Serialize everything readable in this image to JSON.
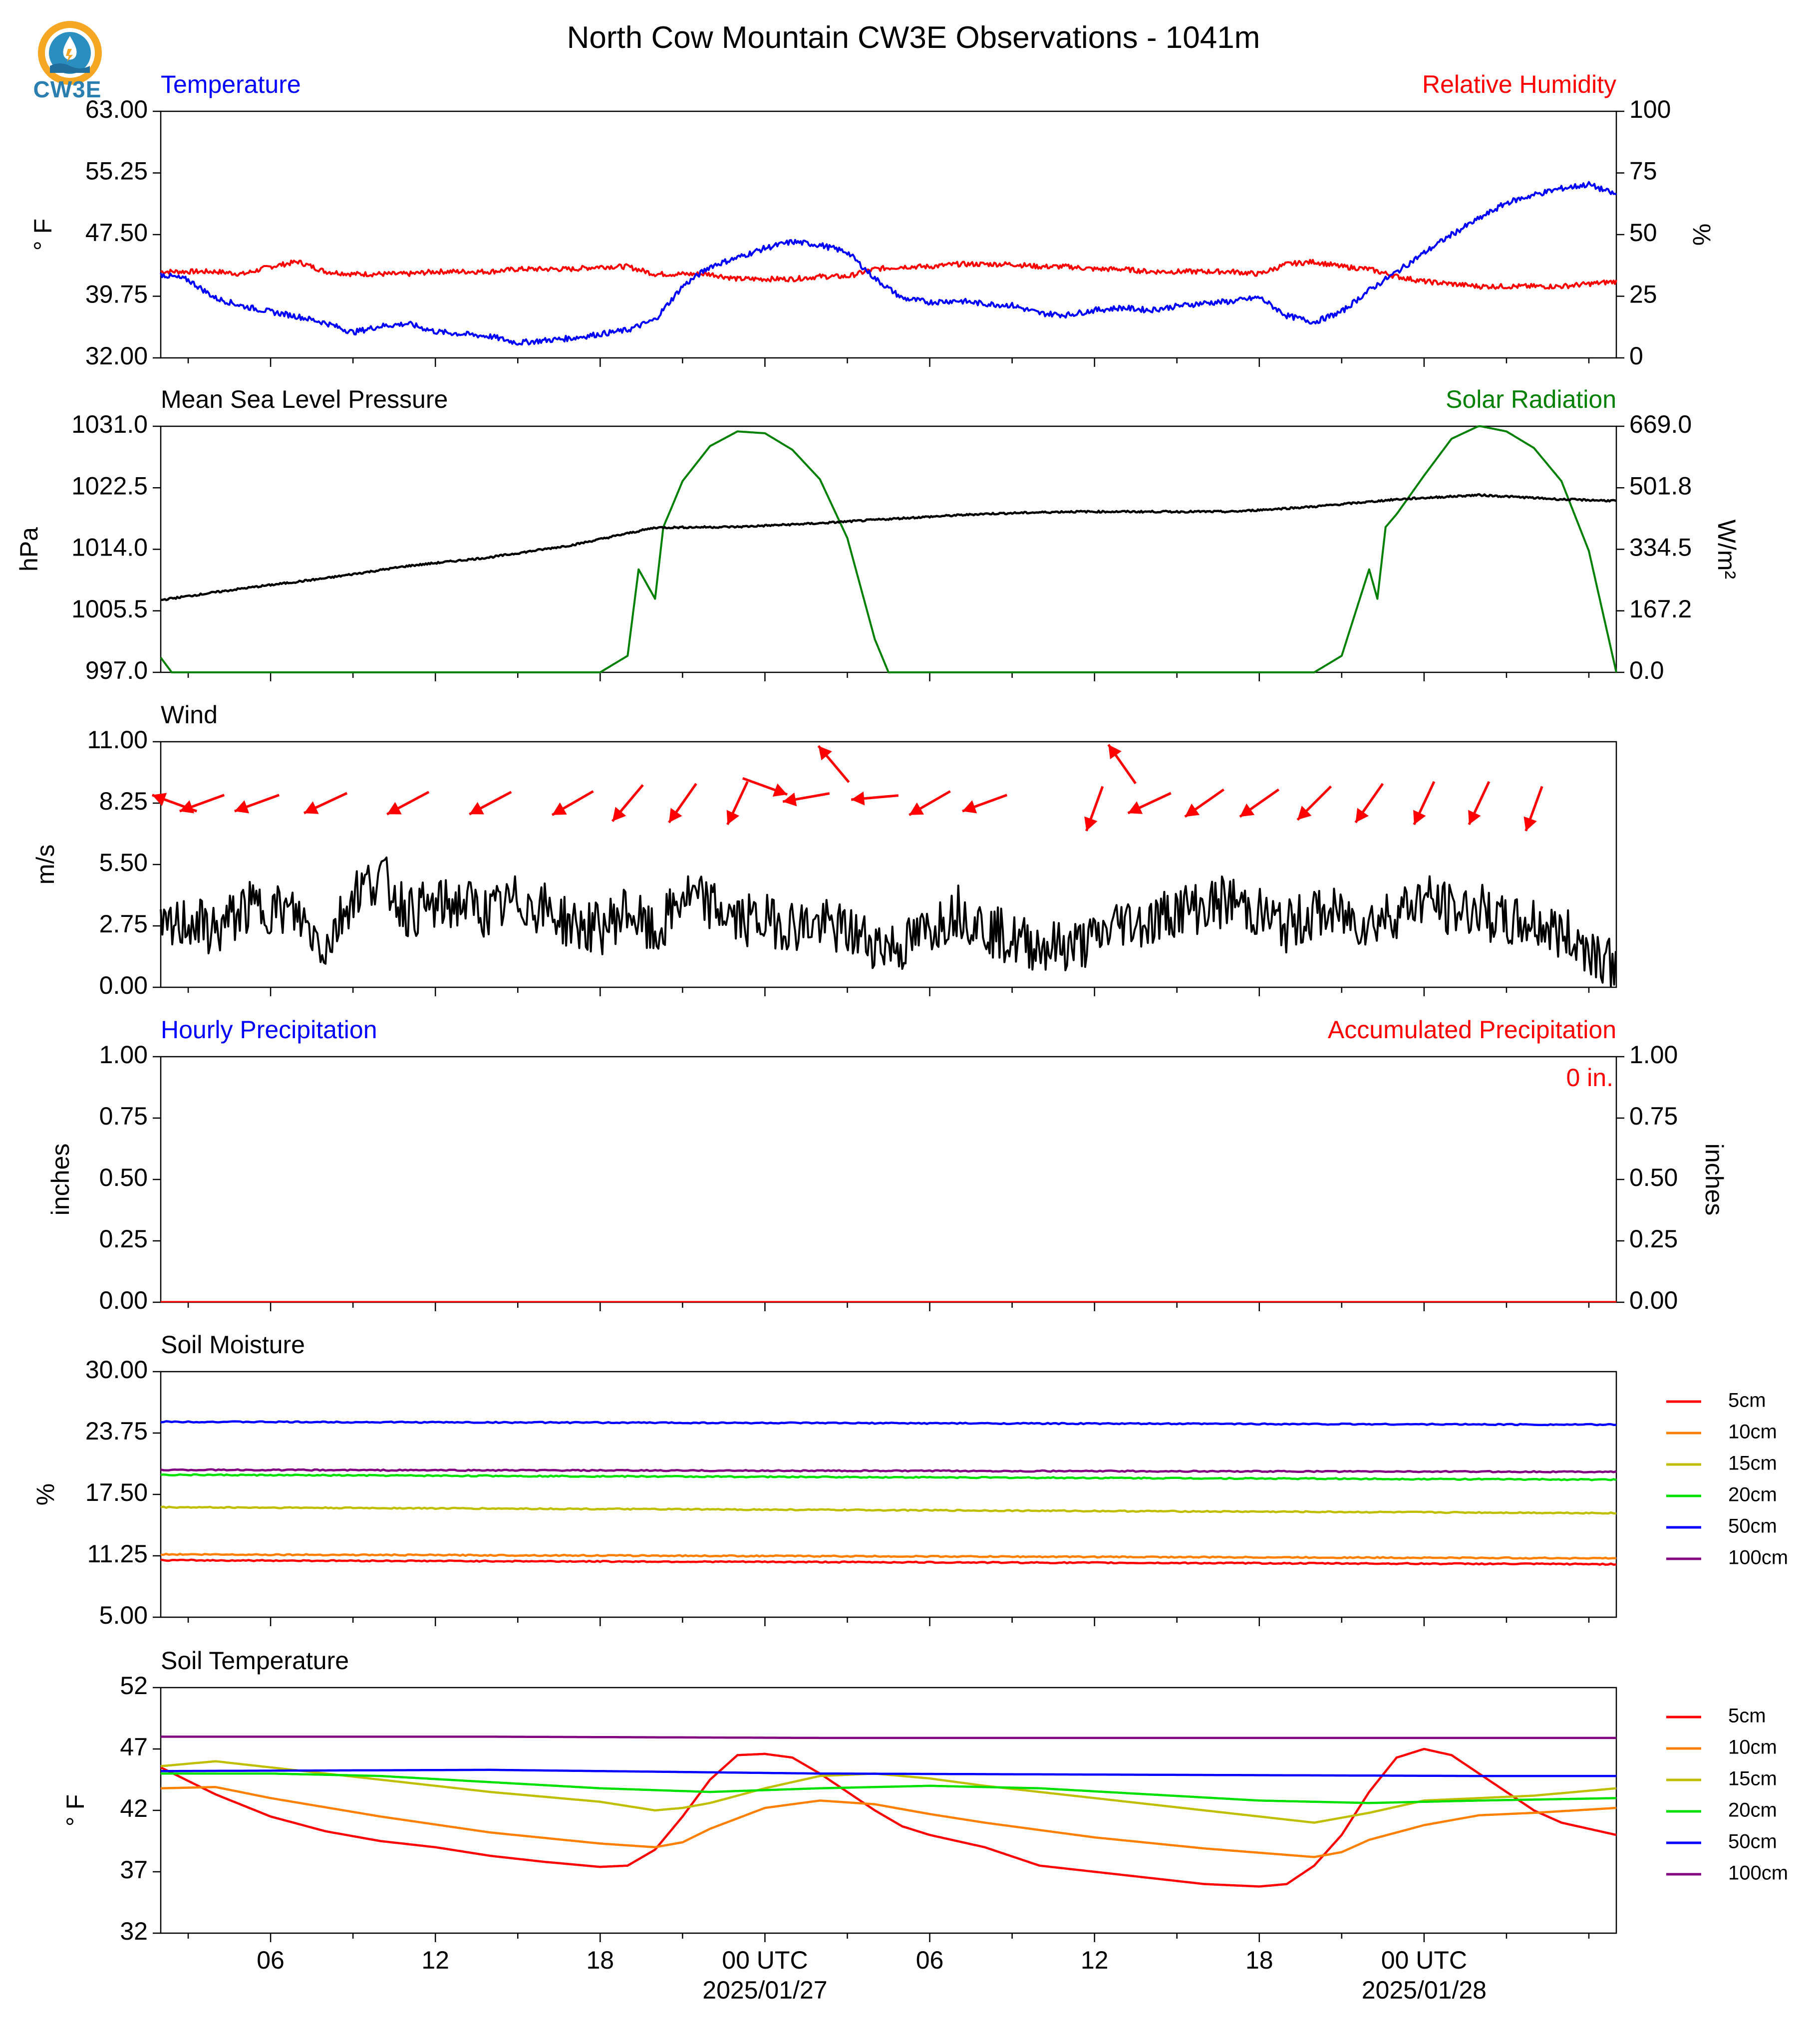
{
  "title": "North Cow Mountain CW3E Observations - 1041m",
  "logo_text": "CW3E",
  "colors": {
    "temperature": "#0000ff",
    "humidity": "#ff0000",
    "pressure": "#000000",
    "solar": "#008000",
    "wind": "#000000",
    "wind_arrows": "#ff0000",
    "precip_hourly": "#0000ff",
    "precip_accum": "#ff0000"
  },
  "x_axis": {
    "tick_labels": [
      "06",
      "12",
      "18",
      "00 UTC",
      "06",
      "12",
      "18",
      "00 UTC"
    ],
    "date_labels": [
      "2025/01/27",
      "2025/01/28"
    ]
  },
  "legend_depths": [
    "5cm",
    "10cm",
    "15cm",
    "20cm",
    "50cm",
    "100cm"
  ],
  "depth_colors": [
    "#ff0000",
    "#ff8000",
    "#bfbf00",
    "#00e000",
    "#0000ff",
    "#800080"
  ],
  "chart_data": [
    {
      "type": "line",
      "panel": "temperature_humidity",
      "left_title": "Temperature",
      "right_title": "Relative Humidity",
      "ylabel": "° F",
      "ylabel_right": "%",
      "ylim": [
        32,
        63
      ],
      "ylim_right": [
        0,
        100
      ],
      "yticks": [
        "63.00",
        "55.25",
        "47.50",
        "39.75",
        "32.00"
      ],
      "yticks_right": [
        "100",
        "75",
        "50",
        "25",
        "0"
      ],
      "x_hours": [
        0,
        1,
        2,
        3,
        4,
        5,
        6,
        7,
        8,
        9,
        10,
        11,
        12,
        13,
        14,
        15,
        16,
        17,
        18,
        19,
        20,
        21,
        22,
        23,
        24,
        25,
        26,
        27,
        28,
        29,
        30,
        31,
        32,
        33,
        34,
        35,
        36,
        37,
        38,
        39,
        40,
        41,
        42,
        43,
        44,
        45,
        46,
        47,
        48,
        49,
        50,
        51,
        52,
        53
      ],
      "series": [
        {
          "name": "Temperature",
          "axis": "left",
          "values": [
            42.5,
            41.8,
            39.5,
            38.5,
            37.8,
            37.2,
            36.4,
            35.2,
            36.0,
            36.3,
            35.3,
            35.0,
            34.7,
            33.9,
            34.2,
            34.5,
            35.0,
            35.5,
            36.8,
            41.0,
            43.5,
            44.6,
            45.8,
            46.6,
            46.2,
            45.3,
            42.0,
            39.5,
            39.0,
            39.2,
            38.8,
            38.6,
            37.6,
            37.4,
            38.0,
            38.3,
            38.0,
            38.5,
            38.9,
            39.1,
            39.6,
            37.3,
            36.5,
            37.8,
            40.5,
            42.8,
            45.2,
            47.5,
            49.5,
            51.5,
            52.5,
            53.3,
            53.8,
            52.5
          ]
        },
        {
          "name": "Relative Humidity",
          "axis": "right",
          "values": [
            35,
            35,
            35,
            34,
            37,
            39,
            35,
            34,
            34,
            34,
            35,
            35,
            35,
            36,
            36,
            36,
            37,
            37,
            34,
            34,
            34,
            32,
            32,
            32,
            33,
            33,
            36,
            37,
            37,
            38,
            38,
            38,
            37,
            37,
            36,
            36,
            35,
            35,
            35,
            35,
            34,
            38,
            39,
            37,
            36,
            33,
            31,
            30,
            29,
            29,
            29,
            29,
            30,
            31
          ]
        }
      ]
    },
    {
      "type": "line",
      "panel": "pressure_solar",
      "left_title": "Mean Sea Level Pressure",
      "right_title": "Solar Radiation",
      "ylabel": "hPa",
      "ylabel_right": "W/m²",
      "ylim": [
        997.0,
        1031.0
      ],
      "ylim_right": [
        0.0,
        669.0
      ],
      "yticks": [
        "1031.0",
        "1022.5",
        "1014.0",
        "1005.5",
        "997.0"
      ],
      "yticks_right": [
        "669.0",
        "501.8",
        "334.5",
        "167.2",
        "0.0"
      ],
      "series": [
        {
          "name": "Mean Sea Level Pressure",
          "axis": "left",
          "x_hours": [
            0,
            3,
            6,
            9,
            12,
            15,
            18,
            21,
            24,
            27,
            30,
            33,
            36,
            39,
            42,
            45,
            48,
            51,
            53
          ],
          "values": [
            1007.0,
            1008.6,
            1010.0,
            1011.7,
            1012.9,
            1014.6,
            1017.0,
            1017.1,
            1017.6,
            1018.3,
            1018.9,
            1019.2,
            1019.2,
            1019.2,
            1019.9,
            1020.9,
            1021.5,
            1020.9,
            1020.7
          ]
        },
        {
          "name": "Solar Radiation",
          "axis": "right",
          "x_hours": [
            0,
            0.4,
            16,
            17,
            17.4,
            18.0,
            18.3,
            18.5,
            19,
            20,
            21,
            22,
            23,
            24,
            25,
            26,
            26.5,
            27,
            42,
            43,
            44,
            44.3,
            44.6,
            45,
            46,
            47,
            48,
            49,
            50,
            51,
            52,
            53
          ],
          "values": [
            40,
            0,
            0,
            45,
            280,
            200,
            395,
            430,
            520,
            615,
            655,
            650,
            605,
            525,
            365,
            90,
            0,
            0,
            0,
            45,
            280,
            200,
            395,
            430,
            535,
            635,
            670,
            655,
            610,
            520,
            330,
            0
          ]
        }
      ]
    },
    {
      "type": "line",
      "panel": "wind",
      "left_title": "Wind",
      "ylabel": "m/s",
      "ylim": [
        0.0,
        11.0
      ],
      "yticks": [
        "11.00",
        "8.25",
        "5.50",
        "2.75",
        "0.00"
      ],
      "series": [
        {
          "name": "Wind",
          "axis": "left",
          "values": [
            2.3,
            3.0,
            2.5,
            3.5,
            3.6,
            3.2,
            1.8,
            4.2,
            5.0,
            3.4,
            3.6,
            3.8,
            3.3,
            3.9,
            3.5,
            2.8,
            2.6,
            3.5,
            2.2,
            4.1,
            3.7,
            3.0,
            3.0,
            2.8,
            2.8,
            2.5,
            2.0,
            1.8,
            2.6,
            3.5,
            2.7,
            2.1,
            1.9,
            1.8,
            2.1,
            3.0,
            2.9,
            3.5,
            3.6,
            3.9,
            3.3,
            2.7,
            3.3,
            3.2,
            2.9,
            3.4,
            4.0,
            3.4,
            3.5,
            2.8,
            2.9,
            2.4,
            1.8,
            1.0
          ]
        }
      ],
      "wind_barbs": [
        {
          "hour": 0.5,
          "speed": 8.25,
          "dir_deg": 110
        },
        {
          "hour": 1.5,
          "speed": 8.25,
          "dir_deg": 70
        },
        {
          "hour": 3.5,
          "speed": 8.25,
          "dir_deg": 70
        },
        {
          "hour": 6,
          "speed": 8.25,
          "dir_deg": 65
        },
        {
          "hour": 9,
          "speed": 8.25,
          "dir_deg": 62
        },
        {
          "hour": 12,
          "speed": 8.25,
          "dir_deg": 62
        },
        {
          "hour": 15,
          "speed": 8.25,
          "dir_deg": 60
        },
        {
          "hour": 17,
          "speed": 8.25,
          "dir_deg": 40
        },
        {
          "hour": 19,
          "speed": 8.25,
          "dir_deg": 35
        },
        {
          "hour": 21,
          "speed": 8.25,
          "dir_deg": 25
        },
        {
          "hour": 22,
          "speed": 9.0,
          "dir_deg": 290
        },
        {
          "hour": 23.5,
          "speed": 8.5,
          "dir_deg": 80
        },
        {
          "hour": 24.5,
          "speed": 10.0,
          "dir_deg": 140
        },
        {
          "hour": 26,
          "speed": 8.5,
          "dir_deg": 85
        },
        {
          "hour": 28,
          "speed": 8.25,
          "dir_deg": 60
        },
        {
          "hour": 30,
          "speed": 8.25,
          "dir_deg": 70
        },
        {
          "hour": 34,
          "speed": 8.0,
          "dir_deg": 20
        },
        {
          "hour": 35,
          "speed": 10.0,
          "dir_deg": 145
        },
        {
          "hour": 36,
          "speed": 8.25,
          "dir_deg": 65
        },
        {
          "hour": 38,
          "speed": 8.25,
          "dir_deg": 55
        },
        {
          "hour": 40,
          "speed": 8.25,
          "dir_deg": 55
        },
        {
          "hour": 42,
          "speed": 8.25,
          "dir_deg": 45
        },
        {
          "hour": 44,
          "speed": 8.25,
          "dir_deg": 35
        },
        {
          "hour": 46,
          "speed": 8.25,
          "dir_deg": 25
        },
        {
          "hour": 48,
          "speed": 8.25,
          "dir_deg": 25
        },
        {
          "hour": 50,
          "speed": 8.0,
          "dir_deg": 20
        }
      ]
    },
    {
      "type": "bar",
      "panel": "precipitation",
      "left_title": "Hourly Precipitation",
      "right_title": "Accumulated Precipitation",
      "ylabel": "inches",
      "ylabel_right": "inches",
      "ylim": [
        0.0,
        1.0
      ],
      "ylim_right": [
        0.0,
        1.0
      ],
      "yticks": [
        "1.00",
        "0.75",
        "0.50",
        "0.25",
        "0.00"
      ],
      "yticks_right": [
        "1.00",
        "0.75",
        "0.50",
        "0.25",
        "0.00"
      ],
      "annotation": "0 in.",
      "series": [
        {
          "name": "Hourly Precipitation",
          "axis": "left",
          "value": 0.0
        },
        {
          "name": "Accumulated Precipitation",
          "axis": "right",
          "value": 0.0
        }
      ]
    },
    {
      "type": "line",
      "panel": "soil_moisture",
      "left_title": "Soil Moisture",
      "ylabel": "%",
      "ylim": [
        5.0,
        30.0
      ],
      "yticks": [
        "30.00",
        "23.75",
        "17.50",
        "11.25",
        "5.00"
      ],
      "series": [
        {
          "name": "5cm",
          "x_hours": [
            0,
            53
          ],
          "values": [
            10.8,
            10.4
          ]
        },
        {
          "name": "10cm",
          "x_hours": [
            0,
            53
          ],
          "values": [
            11.4,
            11.0
          ]
        },
        {
          "name": "15cm",
          "x_hours": [
            0,
            53
          ],
          "values": [
            16.2,
            15.6
          ]
        },
        {
          "name": "20cm",
          "x_hours": [
            0,
            53
          ],
          "values": [
            19.5,
            19.0
          ]
        },
        {
          "name": "50cm",
          "x_hours": [
            0,
            53
          ],
          "values": [
            24.9,
            24.6
          ]
        },
        {
          "name": "100cm",
          "x_hours": [
            0,
            53
          ],
          "values": [
            20.0,
            19.8
          ]
        }
      ]
    },
    {
      "type": "line",
      "panel": "soil_temperature",
      "left_title": "Soil Temperature",
      "ylabel": "° F",
      "ylim": [
        32,
        52
      ],
      "yticks": [
        "52",
        "47",
        "42",
        "37",
        "32"
      ],
      "series": [
        {
          "name": "5cm",
          "x_hours": [
            0,
            2,
            4,
            6,
            8,
            10,
            12,
            14,
            16,
            17,
            18,
            19,
            20,
            21,
            22,
            23,
            24,
            25,
            26,
            27,
            28,
            30,
            32,
            34,
            36,
            38,
            40,
            41,
            42,
            43,
            44,
            45,
            46,
            47,
            48,
            49,
            50,
            51,
            52,
            53
          ],
          "values": [
            45.5,
            43.3,
            41.5,
            40.3,
            39.5,
            39.0,
            38.3,
            37.8,
            37.4,
            37.5,
            38.8,
            41.5,
            44.5,
            46.5,
            46.6,
            46.3,
            45.0,
            43.5,
            42.0,
            40.7,
            40.0,
            39.0,
            37.5,
            37.0,
            36.5,
            36.0,
            35.8,
            36.0,
            37.5,
            40.0,
            43.5,
            46.3,
            47.0,
            46.5,
            45.0,
            43.5,
            42.0,
            41.0,
            40.5,
            40.0
          ]
        },
        {
          "name": "10cm",
          "x_hours": [
            0,
            2,
            4,
            8,
            12,
            16,
            18,
            19,
            20,
            22,
            24,
            26,
            28,
            30,
            34,
            38,
            42,
            43,
            44,
            46,
            48,
            50,
            53
          ],
          "values": [
            43.8,
            43.9,
            43.0,
            41.5,
            40.2,
            39.3,
            39.0,
            39.4,
            40.5,
            42.2,
            42.8,
            42.5,
            41.7,
            41.0,
            39.8,
            38.9,
            38.2,
            38.6,
            39.6,
            40.8,
            41.6,
            41.8,
            42.2
          ]
        },
        {
          "name": "15cm",
          "x_hours": [
            0,
            2,
            4,
            8,
            12,
            16,
            18,
            19,
            20,
            22,
            24,
            26,
            28,
            30,
            34,
            38,
            42,
            44,
            46,
            48,
            50,
            53
          ],
          "values": [
            45.6,
            46.0,
            45.5,
            44.5,
            43.5,
            42.7,
            42.0,
            42.2,
            42.6,
            43.8,
            44.8,
            45.0,
            44.6,
            44.0,
            43.0,
            42.0,
            41.0,
            41.8,
            42.8,
            43.0,
            43.2,
            43.8
          ]
        },
        {
          "name": "20cm",
          "x_hours": [
            0,
            4,
            8,
            12,
            16,
            20,
            24,
            28,
            32,
            36,
            40,
            44,
            48,
            53
          ],
          "values": [
            45.0,
            45.0,
            44.8,
            44.3,
            43.8,
            43.5,
            43.8,
            44.0,
            43.8,
            43.3,
            42.8,
            42.6,
            42.8,
            43.0
          ]
        },
        {
          "name": "50cm",
          "x_hours": [
            0,
            12,
            24,
            36,
            48,
            53
          ],
          "values": [
            45.2,
            45.3,
            45.0,
            44.9,
            44.8,
            44.8
          ]
        },
        {
          "name": "100cm",
          "x_hours": [
            0,
            12,
            24,
            36,
            48,
            53
          ],
          "values": [
            48.0,
            48.0,
            47.9,
            47.9,
            47.9,
            47.9
          ]
        }
      ]
    }
  ]
}
